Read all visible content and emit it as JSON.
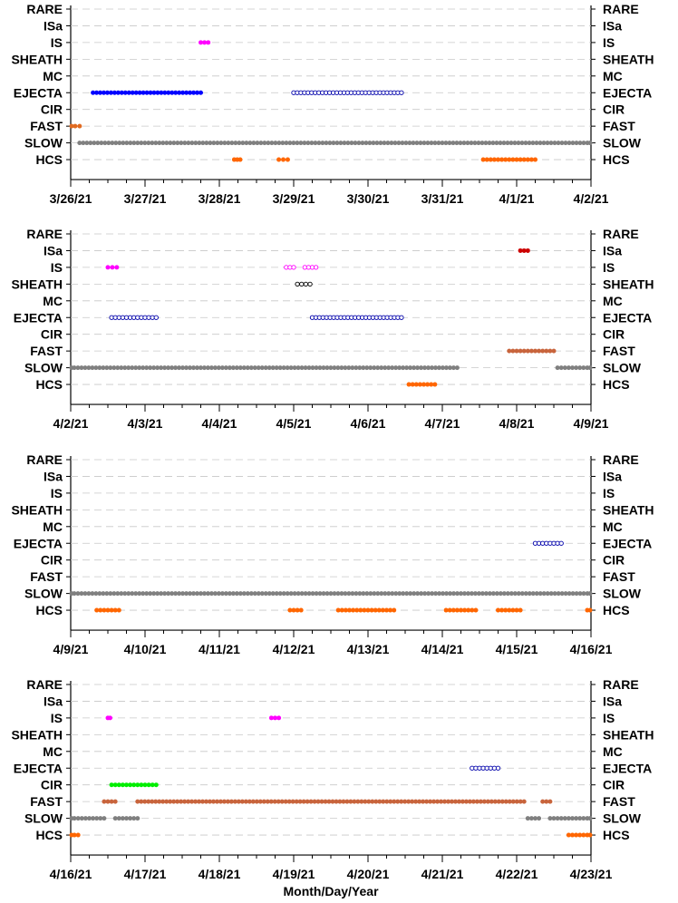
{
  "chart_data": [
    {
      "type": "scatter",
      "categories": [
        "RARE",
        "ISa",
        "IS",
        "SHEATH",
        "MC",
        "EJECTA",
        "CIR",
        "FAST",
        "SLOW",
        "HCS"
      ],
      "x_ticks": [
        "3/26/21",
        "3/27/21",
        "3/28/21",
        "3/29/21",
        "3/30/21",
        "3/31/21",
        "4/1/21",
        "4/2/21"
      ],
      "x_range_days": [
        0,
        7
      ],
      "grid": "dashed horizontal",
      "series": [
        {
          "category": "IS",
          "color": "#ff00ff",
          "marker": "filled",
          "intervals": [
            [
              1.75,
              1.85
            ]
          ]
        },
        {
          "category": "EJECTA",
          "color": "#0000ff",
          "marker": "filled",
          "intervals": [
            [
              0.3,
              1.75
            ]
          ]
        },
        {
          "category": "EJECTA",
          "color": "#0000aa",
          "marker": "open",
          "intervals": [
            [
              3.0,
              4.45
            ]
          ]
        },
        {
          "category": "FAST",
          "color": "#e06a20",
          "marker": "filled",
          "intervals": [
            [
              0.0,
              0.12
            ]
          ]
        },
        {
          "category": "SLOW",
          "color": "#808080",
          "marker": "filled",
          "intervals": [
            [
              0.12,
              7.0
            ]
          ]
        },
        {
          "category": "HCS",
          "color": "#ff6600",
          "marker": "filled",
          "intervals": [
            [
              2.2,
              2.28
            ],
            [
              2.8,
              2.92
            ],
            [
              5.55,
              6.25
            ]
          ]
        }
      ]
    },
    {
      "type": "scatter",
      "categories": [
        "RARE",
        "ISa",
        "IS",
        "SHEATH",
        "MC",
        "EJECTA",
        "CIR",
        "FAST",
        "SLOW",
        "HCS"
      ],
      "x_ticks": [
        "4/2/21",
        "4/3/21",
        "4/4/21",
        "4/5/21",
        "4/6/21",
        "4/7/21",
        "4/8/21",
        "4/9/21"
      ],
      "x_range_days": [
        0,
        7
      ],
      "grid": "dashed horizontal",
      "series": [
        {
          "category": "ISa",
          "color": "#cc0000",
          "marker": "filled",
          "intervals": [
            [
              6.05,
              6.15
            ]
          ]
        },
        {
          "category": "IS",
          "color": "#ff00ff",
          "marker": "filled",
          "intervals": [
            [
              0.5,
              0.62
            ]
          ]
        },
        {
          "category": "IS",
          "color": "#ff00ff",
          "marker": "open",
          "intervals": [
            [
              2.9,
              3.0
            ],
            [
              3.15,
              3.3
            ]
          ]
        },
        {
          "category": "SHEATH",
          "color": "#000000",
          "marker": "open",
          "intervals": [
            [
              3.05,
              3.22
            ]
          ]
        },
        {
          "category": "EJECTA",
          "color": "#0000aa",
          "marker": "open",
          "intervals": [
            [
              0.55,
              1.15
            ],
            [
              3.25,
              4.45
            ]
          ]
        },
        {
          "category": "FAST",
          "color": "#c8643c",
          "marker": "filled",
          "intervals": [
            [
              5.9,
              6.5
            ]
          ]
        },
        {
          "category": "SLOW",
          "color": "#808080",
          "marker": "filled",
          "intervals": [
            [
              0.0,
              5.2
            ],
            [
              6.55,
              7.0
            ]
          ]
        },
        {
          "category": "HCS",
          "color": "#ff6600",
          "marker": "filled",
          "intervals": [
            [
              4.55,
              4.9
            ]
          ]
        }
      ]
    },
    {
      "type": "scatter",
      "categories": [
        "RARE",
        "ISa",
        "IS",
        "SHEATH",
        "MC",
        "EJECTA",
        "CIR",
        "FAST",
        "SLOW",
        "HCS"
      ],
      "x_ticks": [
        "4/9/21",
        "4/10/21",
        "4/11/21",
        "4/12/21",
        "4/13/21",
        "4/14/21",
        "4/15/21",
        "4/16/21"
      ],
      "x_range_days": [
        0,
        7
      ],
      "grid": "dashed horizontal",
      "series": [
        {
          "category": "EJECTA",
          "color": "#0000aa",
          "marker": "open",
          "intervals": [
            [
              6.25,
              6.6
            ]
          ]
        },
        {
          "category": "SLOW",
          "color": "#808080",
          "marker": "filled",
          "intervals": [
            [
              0.0,
              7.0
            ]
          ]
        },
        {
          "category": "HCS",
          "color": "#ff6600",
          "marker": "filled",
          "intervals": [
            [
              0.35,
              0.65
            ],
            [
              2.95,
              3.1
            ],
            [
              3.6,
              4.35
            ],
            [
              5.05,
              5.45
            ],
            [
              5.75,
              6.05
            ],
            [
              6.95,
              7.0
            ]
          ]
        }
      ]
    },
    {
      "type": "scatter",
      "categories": [
        "RARE",
        "ISa",
        "IS",
        "SHEATH",
        "MC",
        "EJECTA",
        "CIR",
        "FAST",
        "SLOW",
        "HCS"
      ],
      "x_ticks": [
        "4/16/21",
        "4/17/21",
        "4/18/21",
        "4/19/21",
        "4/20/21",
        "4/21/21",
        "4/22/21",
        "4/23/21"
      ],
      "x_range_days": [
        0,
        7
      ],
      "xlabel": "Month/Day/Year",
      "grid": "dashed horizontal",
      "series": [
        {
          "category": "IS",
          "color": "#ff00ff",
          "marker": "filled",
          "intervals": [
            [
              0.5,
              0.53
            ],
            [
              2.7,
              2.8
            ]
          ]
        },
        {
          "category": "EJECTA",
          "color": "#0000aa",
          "marker": "open",
          "intervals": [
            [
              5.4,
              5.75
            ]
          ]
        },
        {
          "category": "CIR",
          "color": "#00ee00",
          "marker": "filled",
          "intervals": [
            [
              0.55,
              1.15
            ]
          ]
        },
        {
          "category": "FAST",
          "color": "#c8643c",
          "marker": "filled",
          "intervals": [
            [
              0.45,
              0.6
            ],
            [
              0.9,
              6.1
            ],
            [
              6.35,
              6.45
            ]
          ]
        },
        {
          "category": "SLOW",
          "color": "#808080",
          "marker": "filled",
          "intervals": [
            [
              0.0,
              0.45
            ],
            [
              0.6,
              0.9
            ],
            [
              6.15,
              6.3
            ],
            [
              6.45,
              7.0
            ]
          ]
        },
        {
          "category": "HCS",
          "color": "#ff6600",
          "marker": "filled",
          "intervals": [
            [
              0.0,
              0.1
            ],
            [
              6.7,
              7.0
            ]
          ]
        }
      ]
    }
  ]
}
